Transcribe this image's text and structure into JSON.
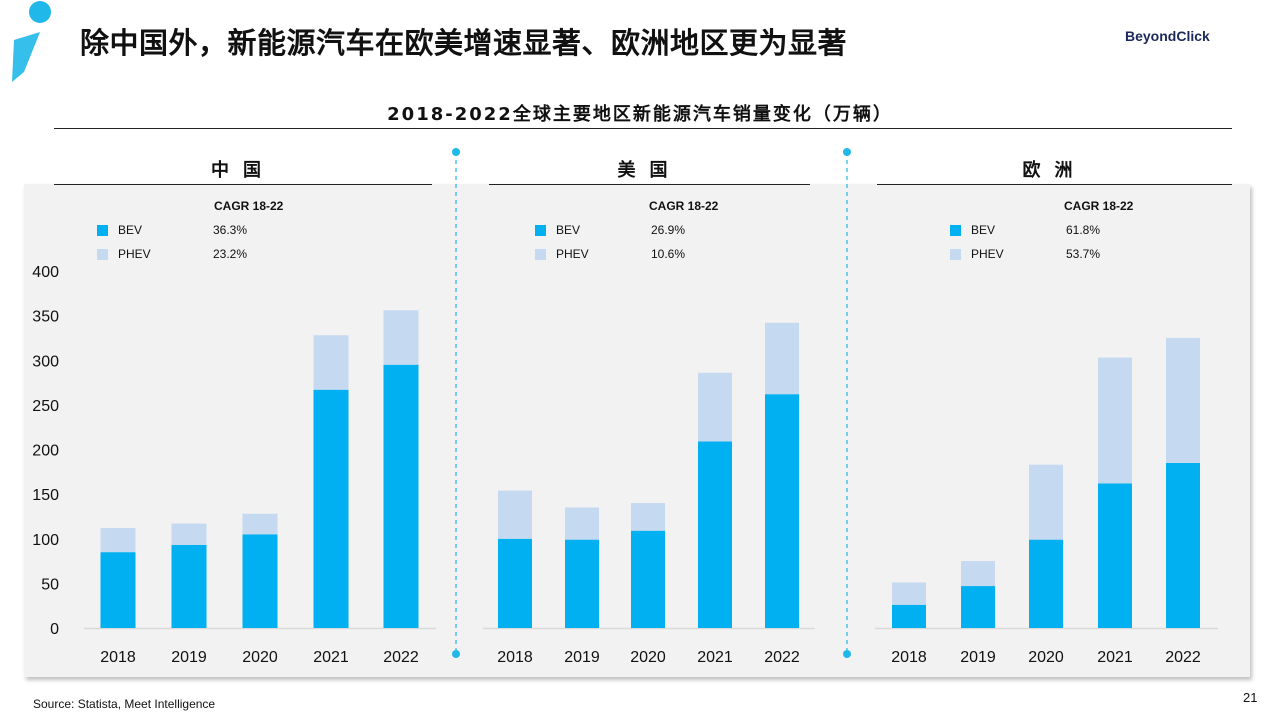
{
  "page": {
    "title": "除中国外，新能源汽车在欧美增速显著、欧洲地区更为显著",
    "brand": "BeyondClick",
    "source": "Source: Statista, Meet Intelligence",
    "page_number": "21"
  },
  "colors": {
    "bev": "#00b0f0",
    "phev": "#c5d9f1",
    "accent": "#1fb8e8"
  },
  "chart_data": {
    "type": "bar",
    "stacked": true,
    "title": "2018-2022全球主要地区新能源汽车销量变化（万辆）",
    "ylim": [
      0,
      400
    ],
    "yticks": [
      "0",
      "50",
      "100",
      "150",
      "200",
      "250",
      "300",
      "350",
      "400"
    ],
    "cagr_label": "CAGR 18-22",
    "categories": [
      "2018",
      "2019",
      "2020",
      "2021",
      "2022"
    ],
    "legend": [
      "BEV",
      "PHEV"
    ],
    "panels": [
      {
        "region": "中国",
        "cagr": {
          "BEV": "36.3%",
          "PHEV": "23.2%"
        },
        "series": [
          {
            "name": "BEV",
            "values": [
              85,
              93,
              105,
              267,
              295
            ]
          },
          {
            "name": "PHEV",
            "values": [
              27,
              24,
              23,
              61,
              61
            ]
          }
        ]
      },
      {
        "region": "美国",
        "cagr": {
          "BEV": "26.9%",
          "PHEV": "10.6%"
        },
        "series": [
          {
            "name": "BEV",
            "values": [
              100,
              99,
              109,
              209,
              262
            ]
          },
          {
            "name": "PHEV",
            "values": [
              54,
              36,
              31,
              77,
              80
            ]
          }
        ]
      },
      {
        "region": "欧洲",
        "cagr": {
          "BEV": "61.8%",
          "PHEV": "53.7%"
        },
        "series": [
          {
            "name": "BEV",
            "values": [
              26,
              47,
              99,
              162,
              185
            ]
          },
          {
            "name": "PHEV",
            "values": [
              25,
              28,
              84,
              141,
              140
            ]
          }
        ]
      }
    ]
  }
}
